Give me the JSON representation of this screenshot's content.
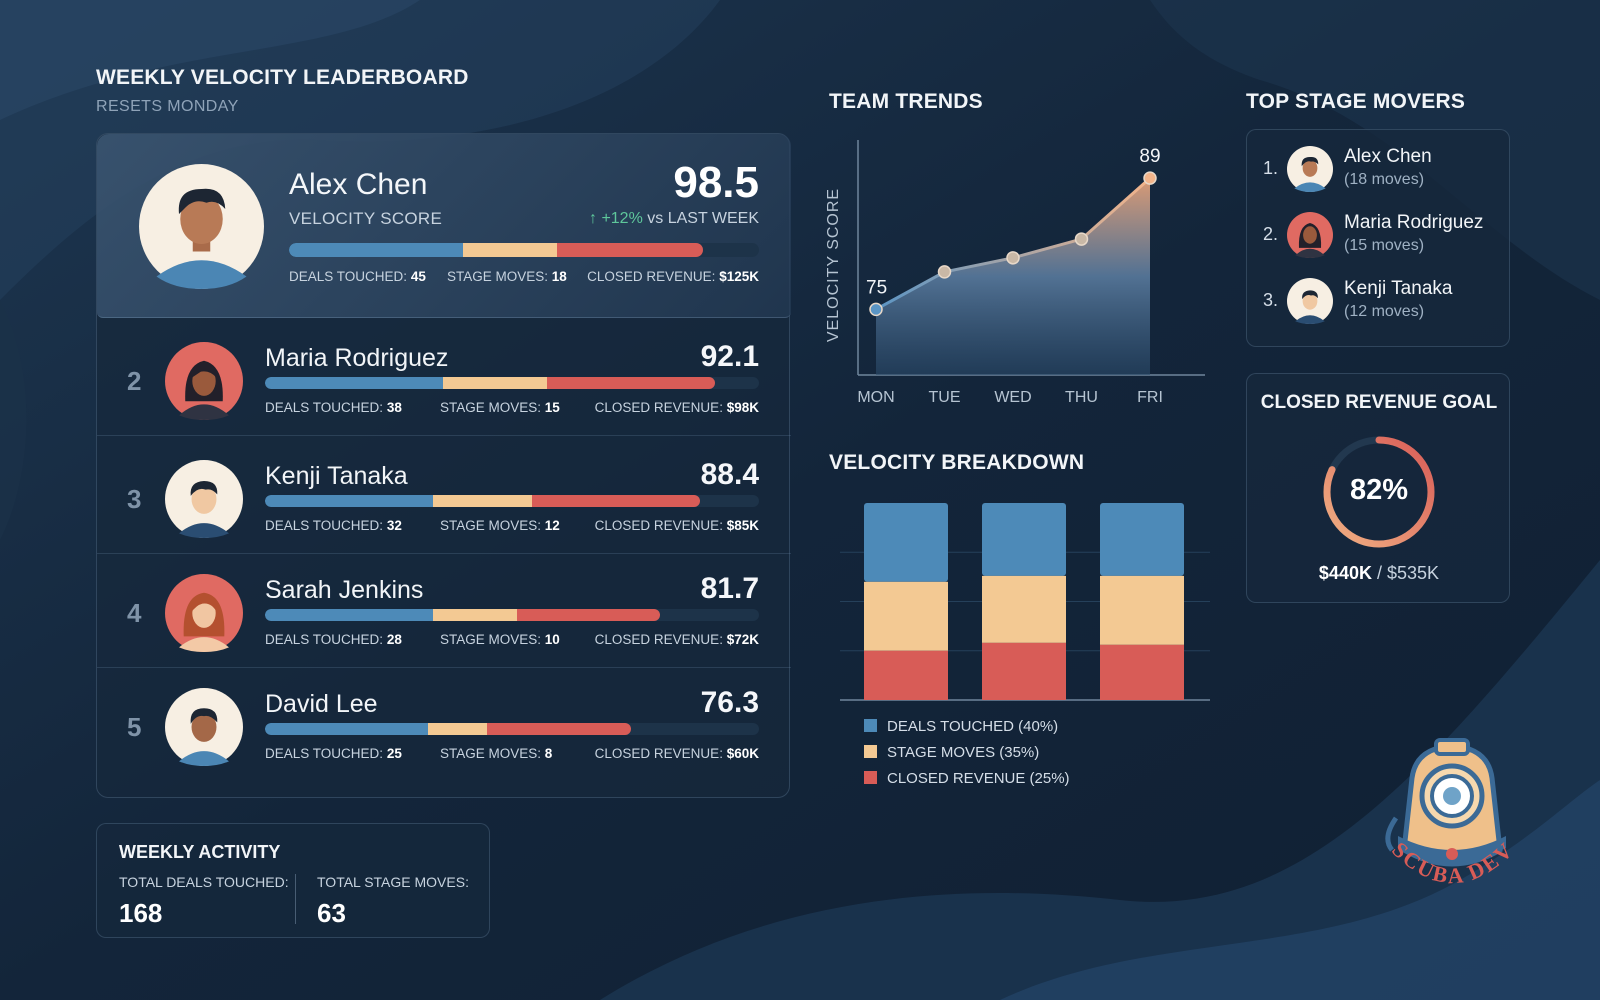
{
  "leaderboard": {
    "title": "WEEKLY VELOCITY LEADERBOARD",
    "subtitle": "RESETS MONDAY",
    "leader": {
      "name": "Alex Chen",
      "score_label": "VELOCITY SCORE",
      "score": "98.5",
      "change_arrow": "↑",
      "change_pct": "+12%",
      "change_text": "vs LAST WEEK",
      "bar": {
        "deals": 0.37,
        "moves": 0.2,
        "revenue": 0.31
      },
      "stats": {
        "deals_label": "DEALS TOUCHED:",
        "deals": "45",
        "moves_label": "STAGE MOVES:",
        "moves": "18",
        "revenue_label": "CLOSED REVENUE:",
        "revenue": "$125K"
      }
    },
    "rows": [
      {
        "rank": "2",
        "name": "Maria Rodriguez",
        "score": "92.1",
        "avatar": "female-dark",
        "bar": {
          "deals": 0.36,
          "moves": 0.21,
          "revenue": 0.34
        },
        "stats": {
          "deals_label": "DEALS TOUCHED:",
          "deals": "38",
          "moves_label": "STAGE MOVES:",
          "moves": "15",
          "revenue_label": "CLOSED REVENUE:",
          "revenue": "$98K"
        }
      },
      {
        "rank": "3",
        "name": "Kenji Tanaka",
        "score": "88.4",
        "avatar": "male-dark-hair",
        "bar": {
          "deals": 0.34,
          "moves": 0.2,
          "revenue": 0.34
        },
        "stats": {
          "deals_label": "DEALS TOUCHED:",
          "deals": "32",
          "moves_label": "STAGE MOVES:",
          "moves": "12",
          "revenue_label": "CLOSED REVENUE:",
          "revenue": "$85K"
        }
      },
      {
        "rank": "4",
        "name": "Sarah Jenkins",
        "score": "81.7",
        "avatar": "female-auburn",
        "bar": {
          "deals": 0.34,
          "moves": 0.17,
          "revenue": 0.29
        },
        "stats": {
          "deals_label": "DEALS TOUCHED:",
          "deals": "28",
          "moves_label": "STAGE MOVES:",
          "moves": "10",
          "revenue_label": "CLOSED REVENUE:",
          "revenue": "$72K"
        }
      },
      {
        "rank": "5",
        "name": "David Lee",
        "score": "76.3",
        "avatar": "male-dark",
        "bar": {
          "deals": 0.33,
          "moves": 0.12,
          "revenue": 0.29
        },
        "stats": {
          "deals_label": "DEALS TOUCHED:",
          "deals": "25",
          "moves_label": "STAGE MOVES:",
          "moves": "8",
          "revenue_label": "CLOSED REVENUE:",
          "revenue": "$60K"
        }
      }
    ]
  },
  "weekly_activity": {
    "title": "WEEKLY ACTIVITY",
    "deals_label": "TOTAL DEALS TOUCHED:",
    "deals": "168",
    "moves_label": "TOTAL STAGE MOVES:",
    "moves": "63"
  },
  "team_trends": {
    "title": "TEAM TRENDS"
  },
  "velocity_breakdown": {
    "title": "VELOCITY BREAKDOWN",
    "legend": [
      {
        "label": "DEALS TOUCHED (40%)",
        "color": "#4d8ab8"
      },
      {
        "label": "STAGE MOVES (35%)",
        "color": "#f3c993"
      },
      {
        "label": "CLOSED REVENUE (25%)",
        "color": "#d85c57"
      }
    ]
  },
  "top_stage_movers": {
    "title": "TOP STAGE MOVERS",
    "items": [
      {
        "rank": "1.",
        "name": "Alex Chen",
        "moves": "(18 moves)"
      },
      {
        "rank": "2.",
        "name": "Maria Rodriguez",
        "moves": "(15 moves)"
      },
      {
        "rank": "3.",
        "name": "Kenji Tanaka",
        "moves": "(12 moves)"
      }
    ]
  },
  "revenue_goal": {
    "title": "CLOSED REVENUE GOAL",
    "percent_label": "82%",
    "progress": 0.82,
    "current": "$440K",
    "separator": "/",
    "target": "$535K"
  },
  "logo": {
    "text": "SCUBA DEV"
  },
  "colors": {
    "deals": "#4d8ab8",
    "moves": "#f3c993",
    "revenue": "#d85c57",
    "positive": "#5ec79b"
  },
  "chart_data": [
    {
      "type": "area",
      "title": "TEAM TRENDS",
      "ylabel": "VELOCITY SCORE",
      "xlabel": "",
      "categories": [
        "MON",
        "TUE",
        "WED",
        "THU",
        "FRI"
      ],
      "values": [
        75,
        79,
        80.5,
        82.5,
        89
      ],
      "point_labels": [
        "75",
        "",
        "",
        "",
        "89"
      ],
      "ylim": [
        68,
        92
      ],
      "grid": false
    },
    {
      "type": "bar",
      "stacked": true,
      "title": "VELOCITY BREAKDOWN",
      "categories": [
        "",
        "",
        ""
      ],
      "series": [
        {
          "name": "DEALS TOUCHED (40%)",
          "values": [
            40,
            37,
            37
          ]
        },
        {
          "name": "STAGE MOVES (35%)",
          "values": [
            35,
            34,
            35
          ]
        },
        {
          "name": "CLOSED REVENUE (25%)",
          "values": [
            25,
            29,
            28
          ]
        }
      ],
      "ylim": [
        0,
        100
      ],
      "grid": true,
      "legend": "bottom-left"
    }
  ]
}
